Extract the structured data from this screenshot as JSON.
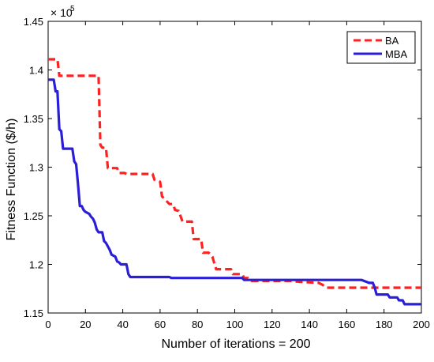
{
  "chart_data": {
    "type": "line",
    "title": "",
    "xlabel": "Number of iterations = 200",
    "ylabel": "Fitness Function ($/h)",
    "y_multiplier_label": "× 10",
    "y_multiplier_exp": "5",
    "xlim": [
      0,
      200
    ],
    "ylim": [
      1.15,
      1.45
    ],
    "x_ticks": [
      0,
      20,
      40,
      60,
      80,
      100,
      120,
      140,
      160,
      180,
      200
    ],
    "x_tick_labels": [
      "0",
      "20",
      "40",
      "60",
      "80",
      "100",
      "120",
      "140",
      "160",
      "180",
      "200"
    ],
    "y_ticks": [
      1.15,
      1.2,
      1.25,
      1.3,
      1.35,
      1.4,
      1.45
    ],
    "y_tick_labels": [
      "1.15",
      "1.2",
      "1.25",
      "1.3",
      "1.35",
      "1.4",
      "1.45"
    ],
    "grid": false,
    "legend_position": "top-right",
    "series": [
      {
        "name": "BA",
        "color": "#ff2020",
        "style": "dashed",
        "points": [
          [
            0,
            1.411
          ],
          [
            5,
            1.411
          ],
          [
            6,
            1.394
          ],
          [
            27,
            1.394
          ],
          [
            28,
            1.323
          ],
          [
            29,
            1.32
          ],
          [
            31,
            1.32
          ],
          [
            32,
            1.299
          ],
          [
            37,
            1.299
          ],
          [
            38,
            1.294
          ],
          [
            41,
            1.294
          ],
          [
            42,
            1.293
          ],
          [
            56,
            1.293
          ],
          [
            57,
            1.287
          ],
          [
            60,
            1.285
          ],
          [
            61,
            1.27
          ],
          [
            65,
            1.262
          ],
          [
            67,
            1.262
          ],
          [
            68,
            1.256
          ],
          [
            70,
            1.255
          ],
          [
            72,
            1.244
          ],
          [
            77,
            1.244
          ],
          [
            78,
            1.226
          ],
          [
            82,
            1.226
          ],
          [
            83,
            1.212
          ],
          [
            86,
            1.212
          ],
          [
            88,
            1.208
          ],
          [
            90,
            1.195
          ],
          [
            98,
            1.195
          ],
          [
            99,
            1.19
          ],
          [
            102,
            1.19
          ],
          [
            104,
            1.19
          ],
          [
            105,
            1.186
          ],
          [
            107,
            1.186
          ],
          [
            109,
            1.183
          ],
          [
            130,
            1.183
          ],
          [
            135,
            1.182
          ],
          [
            145,
            1.181
          ],
          [
            147,
            1.179
          ],
          [
            149,
            1.176
          ],
          [
            200,
            1.176
          ]
        ]
      },
      {
        "name": "MBA",
        "color": "#2a1fd6",
        "style": "solid",
        "points": [
          [
            0,
            1.39
          ],
          [
            3,
            1.39
          ],
          [
            4,
            1.378
          ],
          [
            5,
            1.378
          ],
          [
            6,
            1.339
          ],
          [
            7,
            1.337
          ],
          [
            8,
            1.319
          ],
          [
            13,
            1.319
          ],
          [
            14,
            1.306
          ],
          [
            15,
            1.303
          ],
          [
            16,
            1.283
          ],
          [
            17,
            1.26
          ],
          [
            18,
            1.26
          ],
          [
            19,
            1.256
          ],
          [
            20,
            1.254
          ],
          [
            21,
            1.253
          ],
          [
            22,
            1.252
          ],
          [
            23,
            1.249
          ],
          [
            24,
            1.247
          ],
          [
            25,
            1.243
          ],
          [
            26,
            1.236
          ],
          [
            27,
            1.233
          ],
          [
            29,
            1.233
          ],
          [
            30,
            1.224
          ],
          [
            31,
            1.222
          ],
          [
            33,
            1.215
          ],
          [
            34,
            1.21
          ],
          [
            36,
            1.208
          ],
          [
            37,
            1.203
          ],
          [
            38,
            1.202
          ],
          [
            39,
            1.2
          ],
          [
            42,
            1.2
          ],
          [
            43,
            1.19
          ],
          [
            44,
            1.187
          ],
          [
            65,
            1.187
          ],
          [
            66,
            1.186
          ],
          [
            104,
            1.186
          ],
          [
            105,
            1.184
          ],
          [
            168,
            1.184
          ],
          [
            172,
            1.181
          ],
          [
            174,
            1.181
          ],
          [
            175,
            1.176
          ],
          [
            176,
            1.169
          ],
          [
            182,
            1.169
          ],
          [
            183,
            1.166
          ],
          [
            187,
            1.166
          ],
          [
            188,
            1.163
          ],
          [
            190,
            1.163
          ],
          [
            191,
            1.159
          ],
          [
            200,
            1.159
          ]
        ]
      }
    ]
  }
}
